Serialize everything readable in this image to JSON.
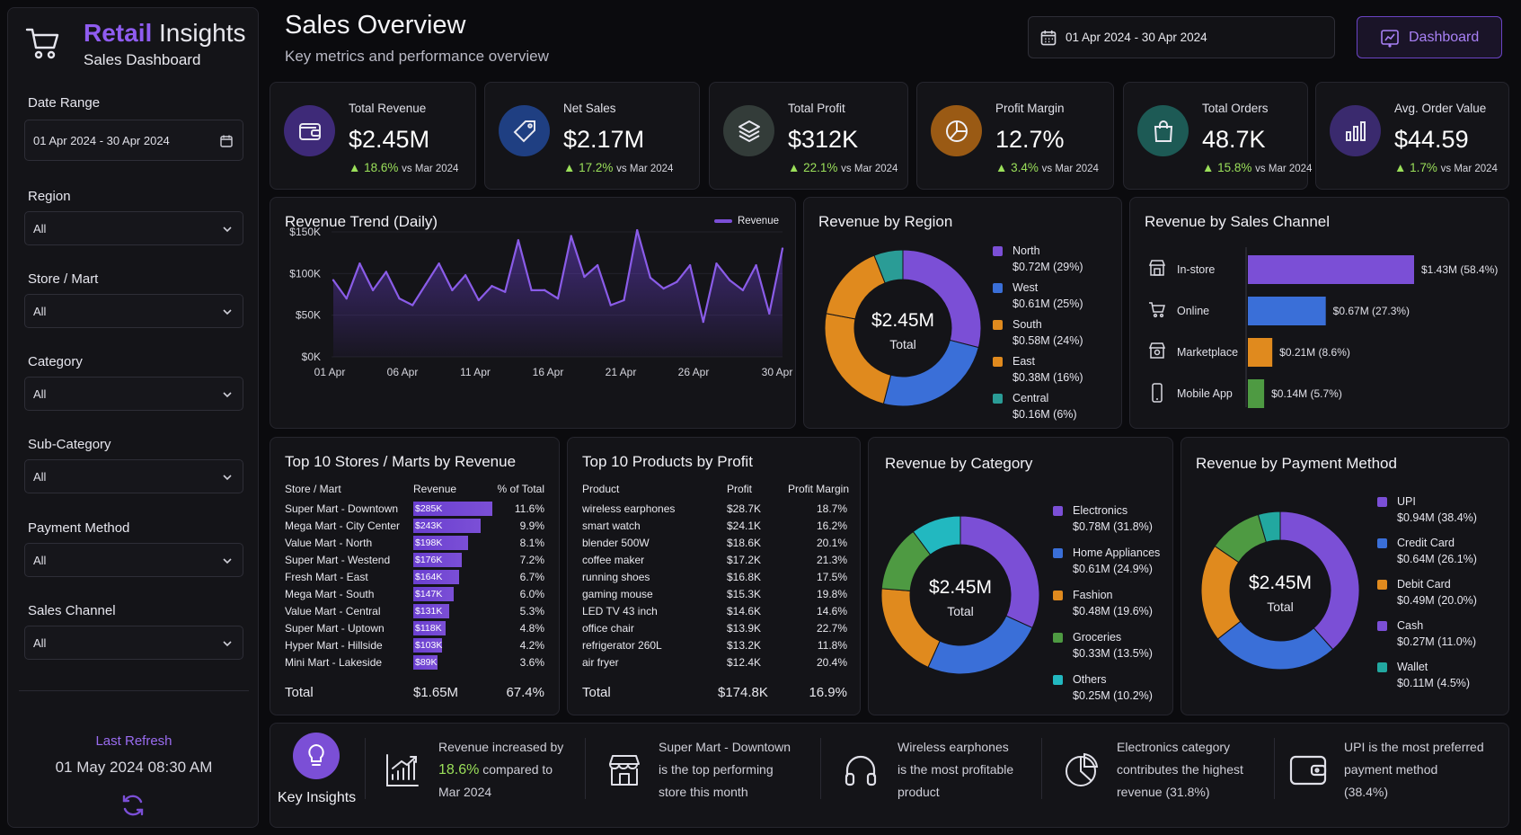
{
  "brand": {
    "name_accent": "Retail",
    "name_rest": "Insights",
    "subtitle": "Sales Dashboard"
  },
  "header": {
    "title": "Sales Overview",
    "subtitle": "Key metrics and performance overview",
    "date_range": "01 Apr 2024 - 30 Apr 2024",
    "dashboard_button": "Dashboard"
  },
  "filters": [
    {
      "label": "Date Range",
      "value": "01 Apr 2024 - 30 Apr 2024"
    },
    {
      "label": "Region",
      "value": "All"
    },
    {
      "label": "Store / Mart",
      "value": "All"
    },
    {
      "label": "Category",
      "value": "All"
    },
    {
      "label": "Sub-Category",
      "value": "All"
    },
    {
      "label": "Payment Method",
      "value": "All"
    },
    {
      "label": "Sales Channel",
      "value": "All"
    }
  ],
  "refresh": {
    "label": "Last Refresh",
    "value": "01 May 2024 08:30 AM"
  },
  "kpis": [
    {
      "label": "Total Revenue",
      "value": "$2.45M",
      "change": "▲ 18.6%",
      "vs": "vs Mar 2024",
      "icon": "wallet-icon",
      "color": "#7b4fd6"
    },
    {
      "label": "Net Sales",
      "value": "$2.17M",
      "change": "▲ 17.2%",
      "vs": "vs Mar 2024",
      "icon": "tag-icon",
      "color": "#3a6fd8"
    },
    {
      "label": "Total Profit",
      "value": "$312K",
      "change": "▲ 22.1%",
      "vs": "vs Mar 2024",
      "icon": "layers-icon",
      "color": "#4a5a55"
    },
    {
      "label": "Profit Margin",
      "value": "12.7%",
      "change": "▲ 3.4%",
      "vs": "vs Mar 2024",
      "icon": "pie-icon",
      "color": "#c9822a"
    },
    {
      "label": "Total Orders",
      "value": "48.7K",
      "change": "▲ 15.8%",
      "vs": "vs Mar 2024",
      "icon": "bag-icon",
      "color": "#2e8a80"
    },
    {
      "label": "Avg. Order Value",
      "value": "$44.59",
      "change": "▲ 1.7%",
      "vs": "vs Mar 2024",
      "icon": "bar-chart-icon",
      "color": "#5b3fb0"
    }
  ],
  "trend": {
    "title": "Revenue Trend (Daily)",
    "legend": "Revenue",
    "y_ticks": [
      "$150K",
      "$100K",
      "$50K",
      "$0K"
    ],
    "x_ticks": [
      "01 Apr",
      "06 Apr",
      "11 Apr",
      "16 Apr",
      "21 Apr",
      "26 Apr",
      "30 Apr"
    ]
  },
  "chart_data": [
    {
      "type": "line",
      "title": "Revenue Trend (Daily)",
      "series": [
        {
          "name": "Revenue",
          "values": [
            92,
            70,
            112,
            80,
            102,
            70,
            62,
            87,
            112,
            80,
            98,
            68,
            85,
            78,
            140,
            80,
            80,
            70,
            145,
            96,
            110,
            62,
            68,
            152,
            95,
            82,
            90,
            110,
            42,
            112,
            92,
            80,
            110,
            52,
            130
          ]
        }
      ],
      "ylim": [
        0,
        150
      ]
    },
    {
      "type": "pie",
      "title": "Revenue by Region",
      "center_value": "$2.45M",
      "center_label": "Total",
      "slices": [
        {
          "name": "North",
          "value": 29,
          "label": "$0.72M (29%)",
          "color": "#7b4fd6"
        },
        {
          "name": "West",
          "value": 25,
          "label": "$0.61M (25%)",
          "color": "#3a6fd8"
        },
        {
          "name": "South",
          "value": 24,
          "label": "$0.58M (24%)",
          "color": "#e08a1e"
        },
        {
          "name": "East",
          "value": 16,
          "label": "$0.38M (16%)",
          "color": "#e08a1e"
        },
        {
          "name": "Central",
          "value": 6,
          "label": "$0.16M (6%)",
          "color": "#2a9c96"
        }
      ]
    },
    {
      "type": "bar",
      "title": "Revenue by Sales Channel",
      "categories": [
        "In-store",
        "Online",
        "Marketplace",
        "Mobile App"
      ],
      "values": [
        1.43,
        0.67,
        0.21,
        0.14
      ],
      "labels": [
        "$1.43M (58.4%)",
        "$0.67M (27.3%)",
        "$0.21M (8.6%)",
        "$0.14M (5.7%)"
      ],
      "colors": [
        "#7b4fd6",
        "#3a6fd8",
        "#e08a1e",
        "#4e9a42"
      ],
      "icons": [
        "store-icon",
        "cart-icon",
        "marketplace-icon",
        "phone-icon"
      ]
    },
    {
      "type": "pie",
      "title": "Revenue by Category",
      "center_value": "$2.45M",
      "center_label": "Total",
      "slices": [
        {
          "name": "Electronics",
          "value": 31.8,
          "label": "$0.78M (31.8%)",
          "color": "#7b4fd6"
        },
        {
          "name": "Home Appliances",
          "value": 24.9,
          "label": "$0.61M (24.9%)",
          "color": "#3a6fd8"
        },
        {
          "name": "Fashion",
          "value": 19.6,
          "label": "$0.48M (19.6%)",
          "color": "#e08a1e"
        },
        {
          "name": "Groceries",
          "value": 13.5,
          "label": "$0.33M (13.5%)",
          "color": "#4e9a42"
        },
        {
          "name": "Others",
          "value": 10.2,
          "label": "$0.25M (10.2%)",
          "color": "#22b8c0"
        }
      ]
    },
    {
      "type": "pie",
      "title": "Revenue by Payment Method",
      "center_value": "$2.45M",
      "center_label": "Total",
      "slices": [
        {
          "name": "UPI",
          "value": 38.4,
          "label": "$0.94M (38.4%)",
          "color": "#7b4fd6"
        },
        {
          "name": "Credit Card",
          "value": 26.1,
          "label": "$0.64M (26.1%)",
          "color": "#3a6fd8"
        },
        {
          "name": "Debit Card",
          "value": 20.0,
          "label": "$0.49M (20.0%)",
          "color": "#e08a1e"
        },
        {
          "name": "Cash",
          "value": 11.0,
          "label": "$0.27M (11.0%)",
          "color": "#4e9a42"
        },
        {
          "name": "Wallet",
          "value": 4.5,
          "label": "$0.11M (4.5%)",
          "color": "#22a8a0"
        }
      ],
      "legend_colors": [
        "#7b4fd6",
        "#3a6fd8",
        "#e08a1e",
        "#7b4fd6",
        "#22a8a0"
      ]
    }
  ],
  "stores": {
    "title": "Top 10 Stores / Marts by Revenue",
    "headers": [
      "Store / Mart",
      "Revenue",
      "% of Total"
    ],
    "rows": [
      {
        "name": "Super Mart - Downtown",
        "rev": "$285K",
        "amt": 285,
        "pct": "11.6%"
      },
      {
        "name": "Mega Mart - City Center",
        "rev": "$243K",
        "amt": 243,
        "pct": "9.9%"
      },
      {
        "name": "Value Mart - North",
        "rev": "$198K",
        "amt": 198,
        "pct": "8.1%"
      },
      {
        "name": "Super Mart - Westend",
        "rev": "$176K",
        "amt": 176,
        "pct": "7.2%"
      },
      {
        "name": "Fresh Mart - East",
        "rev": "$164K",
        "amt": 164,
        "pct": "6.7%"
      },
      {
        "name": "Mega Mart - South",
        "rev": "$147K",
        "amt": 147,
        "pct": "6.0%"
      },
      {
        "name": "Value Mart - Central",
        "rev": "$131K",
        "amt": 131,
        "pct": "5.3%"
      },
      {
        "name": "Super Mart - Uptown",
        "rev": "$118K",
        "amt": 118,
        "pct": "4.8%"
      },
      {
        "name": "Hyper Mart - Hillside",
        "rev": "$103K",
        "amt": 103,
        "pct": "4.2%"
      },
      {
        "name": "Mini Mart - Lakeside",
        "rev": "$89K",
        "amt": 89,
        "pct": "3.6%"
      }
    ],
    "total": {
      "label": "Total",
      "rev": "$1.65M",
      "pct": "67.4%"
    }
  },
  "products": {
    "title": "Top 10 Products by Profit",
    "headers": [
      "Product",
      "Profit",
      "Profit Margin"
    ],
    "rows": [
      {
        "name": "wireless earphones",
        "profit": "$28.7K",
        "margin": "18.7%"
      },
      {
        "name": "smart watch",
        "profit": "$24.1K",
        "margin": "16.2%"
      },
      {
        "name": "blender 500W",
        "profit": "$18.6K",
        "margin": "20.1%"
      },
      {
        "name": "coffee maker",
        "profit": "$17.2K",
        "margin": "21.3%"
      },
      {
        "name": "running shoes",
        "profit": "$16.8K",
        "margin": "17.5%"
      },
      {
        "name": "gaming mouse",
        "profit": "$15.3K",
        "margin": "19.8%"
      },
      {
        "name": "LED TV 43 inch",
        "profit": "$14.6K",
        "margin": "14.6%"
      },
      {
        "name": "office chair",
        "profit": "$13.9K",
        "margin": "22.7%"
      },
      {
        "name": "refrigerator 260L",
        "profit": "$13.2K",
        "margin": "11.8%"
      },
      {
        "name": "air fryer",
        "profit": "$12.4K",
        "margin": "20.4%"
      }
    ],
    "total": {
      "label": "Total",
      "profit": "$174.8K",
      "margin": "16.9%"
    }
  },
  "insights": {
    "label": "Key Insights",
    "items": [
      {
        "icon": "growth-chart-icon",
        "l1": "Revenue increased by",
        "hl": "18.6%",
        "l2": "compared to",
        "l3": "Mar 2024"
      },
      {
        "icon": "storefront-icon",
        "l1": "Super Mart - Downtown",
        "l2": "is the top performing",
        "l3": "store this month"
      },
      {
        "icon": "headphones-icon",
        "l1": "Wireless earphones",
        "l2": "is the most profitable",
        "l3": "product"
      },
      {
        "icon": "pie-chart-icon",
        "l1": "Electronics category",
        "l2": "contributes the highest",
        "l3": "revenue (31.8%)"
      },
      {
        "icon": "wallet-icon",
        "l1": "UPI is the most preferred",
        "l2": "payment method",
        "l3": "(38.4%)"
      }
    ]
  }
}
